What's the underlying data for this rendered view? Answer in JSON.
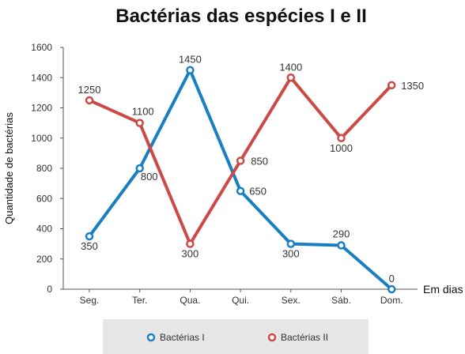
{
  "chart_data": {
    "type": "line",
    "title": "Bactérias das espécies I e II",
    "xlabel": "Em dias",
    "ylabel": "Quantidade de bactérias",
    "categories": [
      "Seg.",
      "Ter.",
      "Qua.",
      "Qui.",
      "Sex.",
      "Sáb.",
      "Dom."
    ],
    "yticks": [
      0,
      200,
      400,
      600,
      800,
      1000,
      1200,
      1400,
      1600
    ],
    "ylim": [
      0,
      1600
    ],
    "grid": false,
    "legend_position": "bottom",
    "series": [
      {
        "name": "Bactérias I",
        "color": "#1a7fc1",
        "values": [
          350,
          800,
          1450,
          650,
          300,
          290,
          0
        ]
      },
      {
        "name": "Bactérias II",
        "color": "#cc4a46",
        "values": [
          1250,
          1100,
          300,
          850,
          1400,
          1000,
          1350
        ]
      }
    ]
  }
}
